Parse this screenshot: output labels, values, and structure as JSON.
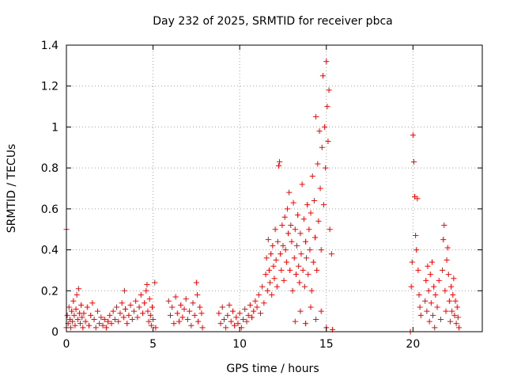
{
  "chart_data": {
    "type": "scatter",
    "title": "Day 232 of 2025, SRMTID for receiver pbca",
    "xlabel": "GPS time / hours",
    "ylabel": "SRMTID / TECUs",
    "xlim": [
      0,
      24
    ],
    "ylim": [
      0,
      1.4
    ],
    "xticks": [
      0,
      5,
      10,
      15,
      20
    ],
    "xtick_labels": [
      "0",
      "5",
      "10",
      "15",
      "20"
    ],
    "yticks": [
      0,
      0.2,
      0.4,
      0.6,
      0.8,
      1.0,
      1.2,
      1.4
    ],
    "ytick_labels": [
      "0",
      "0.2",
      "0.4",
      "0.6",
      "0.8",
      "1",
      "1.2",
      "1.4"
    ],
    "grid": true,
    "marker": "+",
    "series": [
      {
        "name": "pbca",
        "color": "#ff0000",
        "points": [
          [
            0.0,
            0.5
          ],
          [
            0.0,
            0.02
          ],
          [
            0.05,
            0.08
          ],
          [
            0.1,
            0.04
          ],
          [
            0.15,
            0.12
          ],
          [
            0.2,
            0.06
          ],
          [
            0.25,
            0.02
          ],
          [
            0.3,
            0.1
          ],
          [
            0.35,
            0.05
          ],
          [
            0.4,
            0.15
          ],
          [
            0.45,
            0.08
          ],
          [
            0.5,
            0.03
          ],
          [
            0.55,
            0.11
          ],
          [
            0.6,
            0.18
          ],
          [
            0.65,
            0.06
          ],
          [
            0.7,
            0.21
          ],
          [
            0.75,
            0.09
          ],
          [
            0.8,
            0.04
          ],
          [
            0.85,
            0.13
          ],
          [
            0.9,
            0.07
          ],
          [
            0.95,
            0.02
          ],
          [
            1.0,
            0.09
          ],
          [
            1.1,
            0.05
          ],
          [
            1.2,
            0.12
          ],
          [
            1.3,
            0.03
          ],
          [
            1.4,
            0.08
          ],
          [
            1.5,
            0.14
          ],
          [
            1.6,
            0.06
          ],
          [
            1.7,
            0.02
          ],
          [
            1.8,
            0.1
          ],
          [
            1.9,
            0.04
          ],
          [
            2.0,
            0.07
          ],
          [
            2.1,
            0.03
          ],
          [
            2.2,
            0.06
          ],
          [
            2.3,
            0.02
          ],
          [
            2.4,
            0.05
          ],
          [
            2.5,
            0.08
          ],
          [
            2.6,
            0.04
          ],
          [
            2.7,
            0.1
          ],
          [
            2.8,
            0.06
          ],
          [
            2.9,
            0.12
          ],
          [
            3.0,
            0.05
          ],
          [
            3.1,
            0.09
          ],
          [
            3.2,
            0.14
          ],
          [
            3.3,
            0.07
          ],
          [
            3.35,
            0.2
          ],
          [
            3.4,
            0.11
          ],
          [
            3.5,
            0.04
          ],
          [
            3.6,
            0.08
          ],
          [
            3.7,
            0.13
          ],
          [
            3.8,
            0.06
          ],
          [
            3.9,
            0.1
          ],
          [
            4.0,
            0.15
          ],
          [
            4.1,
            0.07
          ],
          [
            4.2,
            0.12
          ],
          [
            4.3,
            0.18
          ],
          [
            4.4,
            0.09
          ],
          [
            4.5,
            0.14
          ],
          [
            4.6,
            0.2
          ],
          [
            4.65,
            0.23
          ],
          [
            4.7,
            0.1
          ],
          [
            4.75,
            0.05
          ],
          [
            4.8,
            0.16
          ],
          [
            4.85,
            0.08
          ],
          [
            4.9,
            0.03
          ],
          [
            4.95,
            0.12
          ],
          [
            5.0,
            0.06
          ],
          [
            5.1,
            0.24
          ],
          [
            5.15,
            0.02
          ],
          [
            5.9,
            0.15
          ],
          [
            6.0,
            0.08
          ],
          [
            6.1,
            0.12
          ],
          [
            6.2,
            0.04
          ],
          [
            6.3,
            0.17
          ],
          [
            6.4,
            0.09
          ],
          [
            6.5,
            0.05
          ],
          [
            6.6,
            0.13
          ],
          [
            6.7,
            0.07
          ],
          [
            6.8,
            0.11
          ],
          [
            6.9,
            0.16
          ],
          [
            7.0,
            0.06
          ],
          [
            7.1,
            0.1
          ],
          [
            7.2,
            0.03
          ],
          [
            7.3,
            0.14
          ],
          [
            7.4,
            0.08
          ],
          [
            7.5,
            0.24
          ],
          [
            7.55,
            0.18
          ],
          [
            7.6,
            0.05
          ],
          [
            7.7,
            0.12
          ],
          [
            7.8,
            0.09
          ],
          [
            7.85,
            0.02
          ],
          [
            8.8,
            0.09
          ],
          [
            8.9,
            0.04
          ],
          [
            9.0,
            0.12
          ],
          [
            9.1,
            0.06
          ],
          [
            9.2,
            0.02
          ],
          [
            9.3,
            0.08
          ],
          [
            9.4,
            0.13
          ],
          [
            9.5,
            0.05
          ],
          [
            9.6,
            0.1
          ],
          [
            9.7,
            0.03
          ],
          [
            9.8,
            0.07
          ],
          [
            9.9,
            0.04
          ],
          [
            10.0,
            0.09
          ],
          [
            10.1,
            0.02
          ],
          [
            10.2,
            0.06
          ],
          [
            10.3,
            0.11
          ],
          [
            10.4,
            0.05
          ],
          [
            10.5,
            0.08
          ],
          [
            10.6,
            0.13
          ],
          [
            10.7,
            0.07
          ],
          [
            10.8,
            0.1
          ],
          [
            10.9,
            0.15
          ],
          [
            11.0,
            0.12
          ],
          [
            11.1,
            0.18
          ],
          [
            11.2,
            0.09
          ],
          [
            11.3,
            0.22
          ],
          [
            11.4,
            0.14
          ],
          [
            11.5,
            0.28
          ],
          [
            11.55,
            0.36
          ],
          [
            11.6,
            0.2
          ],
          [
            11.65,
            0.45
          ],
          [
            11.7,
            0.3
          ],
          [
            11.75,
            0.24
          ],
          [
            11.8,
            0.38
          ],
          [
            11.85,
            0.18
          ],
          [
            11.9,
            0.42
          ],
          [
            11.95,
            0.32
          ],
          [
            12.0,
            0.26
          ],
          [
            12.05,
            0.5
          ],
          [
            12.1,
            0.35
          ],
          [
            12.15,
            0.22
          ],
          [
            12.2,
            0.44
          ],
          [
            12.25,
            0.81
          ],
          [
            12.3,
            0.83
          ],
          [
            12.35,
            0.38
          ],
          [
            12.4,
            0.3
          ],
          [
            12.45,
            0.52
          ],
          [
            12.5,
            0.42
          ],
          [
            12.55,
            0.25
          ],
          [
            12.6,
            0.56
          ],
          [
            12.65,
            0.4
          ],
          [
            12.7,
            0.34
          ],
          [
            12.75,
            0.6
          ],
          [
            12.8,
            0.48
          ],
          [
            12.85,
            0.68
          ],
          [
            12.9,
            0.3
          ],
          [
            12.95,
            0.52
          ],
          [
            13.0,
            0.44
          ],
          [
            13.05,
            0.2
          ],
          [
            13.1,
            0.63
          ],
          [
            13.15,
            0.36
          ],
          [
            13.2,
            0.5
          ],
          [
            13.25,
            0.28
          ],
          [
            13.3,
            0.42
          ],
          [
            13.35,
            0.57
          ],
          [
            13.4,
            0.32
          ],
          [
            13.45,
            0.24
          ],
          [
            13.5,
            0.48
          ],
          [
            13.55,
            0.38
          ],
          [
            13.6,
            0.72
          ],
          [
            13.65,
            0.3
          ],
          [
            13.7,
            0.55
          ],
          [
            13.75,
            0.22
          ],
          [
            13.8,
            0.44
          ],
          [
            13.85,
            0.36
          ],
          [
            13.9,
            0.62
          ],
          [
            13.95,
            0.28
          ],
          [
            14.0,
            0.5
          ],
          [
            14.05,
            0.4
          ],
          [
            14.1,
            0.58
          ],
          [
            14.15,
            0.2
          ],
          [
            14.2,
            0.76
          ],
          [
            14.25,
            0.34
          ],
          [
            14.3,
            0.64
          ],
          [
            14.35,
            0.46
          ],
          [
            14.4,
            1.05
          ],
          [
            14.45,
            0.3
          ],
          [
            14.5,
            0.82
          ],
          [
            14.55,
            0.54
          ],
          [
            14.6,
            0.98
          ],
          [
            14.65,
            0.7
          ],
          [
            14.7,
            0.4
          ],
          [
            14.75,
            0.9
          ],
          [
            14.8,
            1.25
          ],
          [
            14.85,
            0.62
          ],
          [
            14.9,
            1.0
          ],
          [
            14.95,
            0.8
          ],
          [
            15.0,
            1.32
          ],
          [
            15.05,
            1.1
          ],
          [
            15.1,
            0.93
          ],
          [
            15.15,
            1.18
          ],
          [
            15.2,
            0.5
          ],
          [
            15.3,
            0.38
          ],
          [
            15.35,
            0.01
          ],
          [
            13.2,
            0.05
          ],
          [
            13.5,
            0.1
          ],
          [
            13.8,
            0.04
          ],
          [
            14.1,
            0.12
          ],
          [
            14.4,
            0.06
          ],
          [
            14.7,
            0.1
          ],
          [
            15.0,
            0.02
          ],
          [
            19.85,
            0.0
          ],
          [
            19.9,
            0.22
          ],
          [
            19.95,
            0.34
          ],
          [
            20.0,
            0.96
          ],
          [
            20.05,
            0.83
          ],
          [
            20.1,
            0.66
          ],
          [
            20.15,
            0.47
          ],
          [
            20.2,
            0.4
          ],
          [
            20.25,
            0.65
          ],
          [
            20.3,
            0.3
          ],
          [
            20.35,
            0.18
          ],
          [
            20.4,
            0.12
          ],
          [
            20.45,
            0.08
          ],
          [
            20.7,
            0.15
          ],
          [
            20.75,
            0.25
          ],
          [
            20.8,
            0.1
          ],
          [
            20.85,
            0.32
          ],
          [
            20.9,
            0.2
          ],
          [
            20.95,
            0.05
          ],
          [
            21.0,
            0.28
          ],
          [
            21.05,
            0.14
          ],
          [
            21.1,
            0.34
          ],
          [
            21.15,
            0.08
          ],
          [
            21.2,
            0.22
          ],
          [
            21.25,
            0.02
          ],
          [
            21.3,
            0.18
          ],
          [
            21.4,
            0.12
          ],
          [
            21.5,
            0.25
          ],
          [
            21.6,
            0.06
          ],
          [
            21.7,
            0.3
          ],
          [
            21.75,
            0.45
          ],
          [
            21.8,
            0.52
          ],
          [
            21.85,
            0.2
          ],
          [
            21.9,
            0.1
          ],
          [
            21.95,
            0.35
          ],
          [
            22.0,
            0.41
          ],
          [
            22.05,
            0.28
          ],
          [
            22.1,
            0.15
          ],
          [
            22.15,
            0.05
          ],
          [
            22.2,
            0.22
          ],
          [
            22.25,
            0.1
          ],
          [
            22.3,
            0.18
          ],
          [
            22.35,
            0.26
          ],
          [
            22.4,
            0.08
          ],
          [
            22.45,
            0.15
          ],
          [
            22.5,
            0.04
          ],
          [
            22.55,
            0.12
          ],
          [
            22.6,
            0.07
          ],
          [
            22.65,
            0.02
          ]
        ]
      }
    ]
  }
}
